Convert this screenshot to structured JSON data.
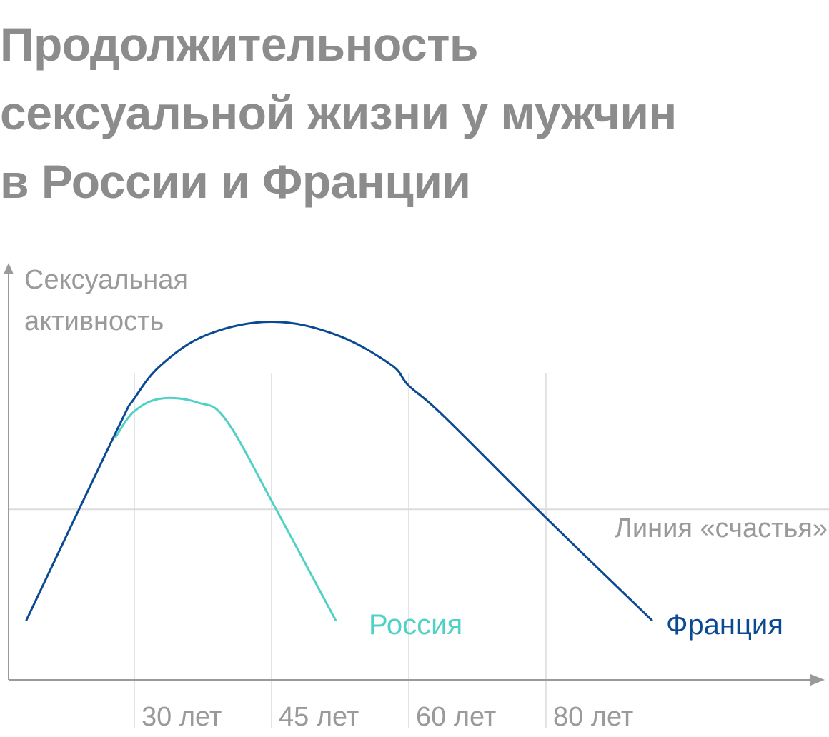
{
  "title_lines": [
    "Продолжительность",
    "сексуальной жизни у мужчин",
    "в России и Франции"
  ],
  "colors": {
    "title": "#8c8c8c",
    "axis": "#9a9a9a",
    "grid": "#dcdcdc",
    "russia": "#4fd1c5",
    "france": "#0b4a92",
    "text": "#9a9a9a"
  },
  "chart_data": {
    "type": "line",
    "title": "Продолжительность сексуальной жизни у мужчин в России и Франции",
    "ylabel_lines": [
      "Сексуальная",
      "активность"
    ],
    "xlabel": "",
    "x_ticks": [
      {
        "age": 30,
        "label": "30 лет"
      },
      {
        "age": 45,
        "label": "45 лет"
      },
      {
        "age": 60,
        "label": "60 лет"
      },
      {
        "age": 80,
        "label": "80 лет"
      }
    ],
    "xlim": [
      16,
      98
    ],
    "ylim": [
      0,
      100
    ],
    "reference_line": {
      "name": "Линия «счастья»",
      "y": 40
    },
    "grid": "vertical at ticks",
    "series": [
      {
        "name": "Франция",
        "color_key": "france",
        "points": [
          [
            18,
            14
          ],
          [
            28,
            58
          ],
          [
            30,
            66
          ],
          [
            33,
            74
          ],
          [
            38,
            81
          ],
          [
            45,
            84
          ],
          [
            52,
            81
          ],
          [
            58,
            74
          ],
          [
            60,
            69
          ],
          [
            65,
            62
          ],
          [
            80,
            38
          ],
          [
            92,
            14
          ]
        ]
      },
      {
        "name": "Россия",
        "color_key": "russia",
        "points": [
          [
            28,
            57
          ],
          [
            30,
            63
          ],
          [
            33,
            66
          ],
          [
            37,
            65
          ],
          [
            40,
            61
          ],
          [
            45,
            42
          ],
          [
            52,
            14
          ]
        ]
      }
    ]
  }
}
